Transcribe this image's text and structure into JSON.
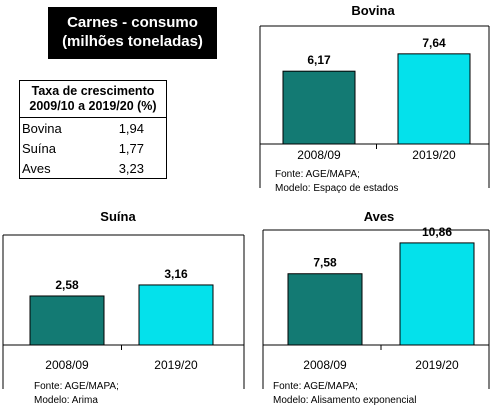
{
  "header": {
    "title_line1": "Carnes - consumo",
    "title_line2": "(milhões toneladas)"
  },
  "growth_table": {
    "header_line1": "Taxa de crescimento",
    "header_line2": "2009/10 a 2019/20 (%)",
    "rows": [
      {
        "name": "Bovina",
        "value": "1,94"
      },
      {
        "name": "Suína",
        "value": "1,77"
      },
      {
        "name": "Aves",
        "value": "3,23"
      }
    ]
  },
  "colors": {
    "bar_2008": "#137a73",
    "bar_2019": "#04e1eb",
    "bar_stroke": "#000000"
  },
  "chart_data": [
    {
      "type": "bar",
      "title": "Bovina",
      "categories": [
        "2008/09",
        "2019/20"
      ],
      "values": [
        6.17,
        7.64
      ],
      "value_labels": [
        "6,17",
        "7,64"
      ],
      "source_lines": [
        "Fonte: AGE/MAPA;",
        "Modelo: Espaço de estados"
      ]
    },
    {
      "type": "bar",
      "title": "Suína",
      "categories": [
        "2008/09",
        "2019/20"
      ],
      "values": [
        2.58,
        3.16
      ],
      "value_labels": [
        "2,58",
        "3,16"
      ],
      "source_lines": [
        "Fonte: AGE/MAPA;",
        "Modelo: Arima"
      ]
    },
    {
      "type": "bar",
      "title": "Aves",
      "categories": [
        "2008/09",
        "2019/20"
      ],
      "values": [
        7.58,
        10.86
      ],
      "value_labels": [
        "7,58",
        "10,86"
      ],
      "source_lines": [
        "Fonte: AGE/MAPA;",
        "Modelo: Alisamento exponencial"
      ]
    }
  ]
}
